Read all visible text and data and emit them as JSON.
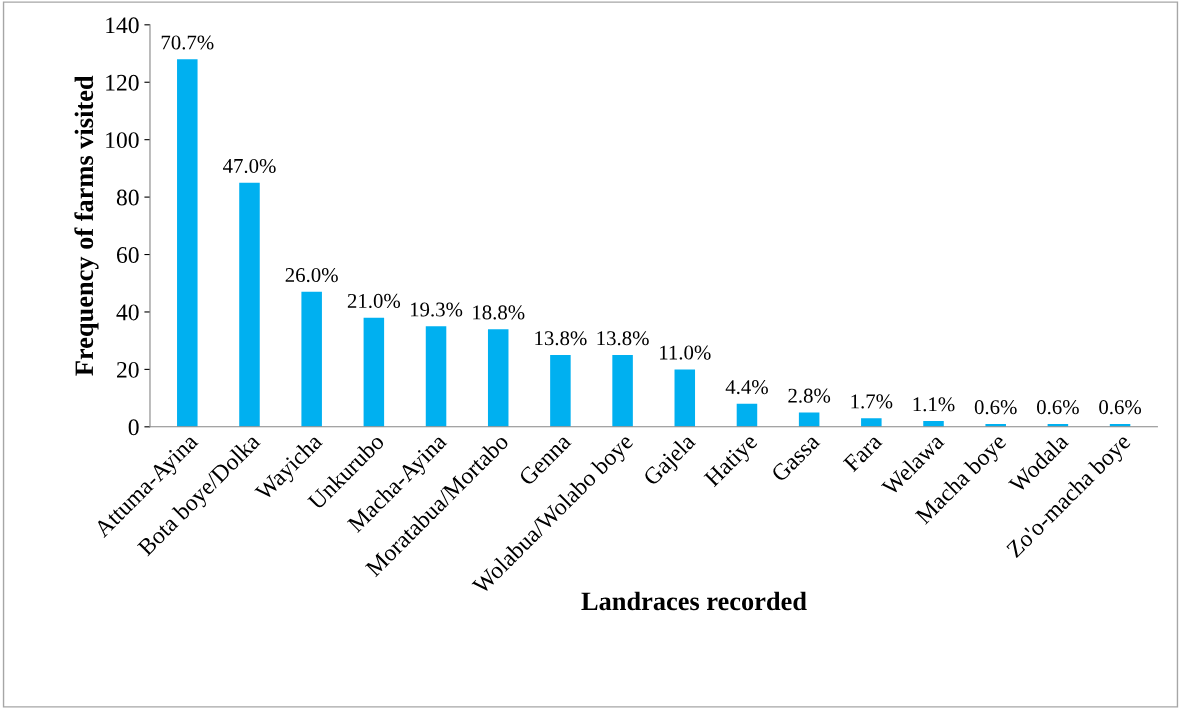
{
  "chart_data": {
    "type": "bar",
    "xlabel": "Landraces recorded",
    "ylabel": "Frequency of farms visited",
    "categories": [
      "Attuma-Ayina",
      "Bota boye/Dolka",
      "Wayicha",
      "Unkurubo",
      "Macha-Ayina",
      "Moratabua/Mortabo",
      "Genna",
      "Wolabua/Wolabo boye",
      "Gajela",
      "Hatiye",
      "Gassa",
      "Fara",
      "Welawa",
      "Macha boye",
      "Wodala",
      "Zo'o-macha boye"
    ],
    "values": [
      128,
      85,
      47,
      38,
      35,
      34,
      25,
      25,
      20,
      8,
      5,
      3,
      2,
      1,
      1,
      1
    ],
    "annotations": [
      {
        "text": "70.7%",
        "x": "Attuma-Ayina",
        "y": 128
      },
      {
        "text": "47.0%",
        "x": "Bota boye/Dolka",
        "y": 85
      },
      {
        "text": "26.0%",
        "x": "Wayicha",
        "y": 47
      },
      {
        "text": "21.0%",
        "x": "Unkurubo",
        "y": 38
      },
      {
        "text": "19.3%",
        "x": "Macha-Ayina",
        "y": 35
      },
      {
        "text": "18.8%",
        "x": "Moratabua/Mortabo",
        "y": 34
      },
      {
        "text": "13.8%",
        "x": "Genna",
        "y": 25
      },
      {
        "text": "13.8%",
        "x": "Wolabua/Wolabo boye",
        "y": 25
      },
      {
        "text": "11.0%",
        "x": "Gajela",
        "y": 20
      },
      {
        "text": "4.4%",
        "x": "Hatiye",
        "y": 8
      },
      {
        "text": "2.8%",
        "x": "Gassa",
        "y": 5
      },
      {
        "text": "1.7%",
        "x": "Fara",
        "y": 3
      },
      {
        "text": "1.1%",
        "x": "Welawa",
        "y": 2
      },
      {
        "text": "0.6%",
        "x": "Macha boye",
        "y": 1
      },
      {
        "text": "0.6%",
        "x": "Wodala",
        "y": 1
      },
      {
        "text": "0.6%",
        "x": "Zo'o-macha boye",
        "y": 1
      }
    ],
    "color": "#00b0f0",
    "ylim": [
      0,
      140
    ],
    "yticks": [
      0,
      20,
      40,
      60,
      80,
      100,
      120,
      140
    ],
    "grid": false,
    "legend": false
  }
}
